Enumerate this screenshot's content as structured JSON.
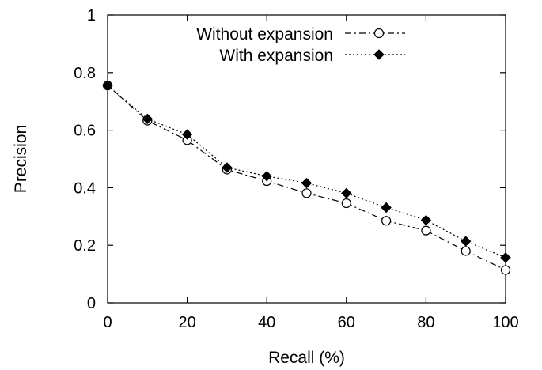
{
  "chart_data": {
    "type": "line",
    "title": "",
    "xlabel": "Recall (%)",
    "ylabel": "Precision",
    "xlim": [
      0,
      100
    ],
    "ylim": [
      0,
      1
    ],
    "x_ticks": [
      0,
      20,
      40,
      60,
      80,
      100
    ],
    "y_ticks": [
      0,
      0.2,
      0.4,
      0.6,
      0.8,
      1
    ],
    "x_tick_labels": [
      "0",
      "20",
      "40",
      "60",
      "80",
      "100"
    ],
    "y_tick_labels": [
      "0",
      "0.2",
      "0.4",
      "0.6",
      "0.8",
      "1"
    ],
    "grid": false,
    "legend_position": "top-right",
    "x": [
      0,
      10,
      20,
      30,
      40,
      50,
      60,
      70,
      80,
      90,
      100
    ],
    "series": [
      {
        "name": "Without expansion",
        "values": [
          0.755,
          0.633,
          0.565,
          0.463,
          0.423,
          0.381,
          0.346,
          0.285,
          0.251,
          0.18,
          0.114
        ],
        "marker": "open-circle",
        "line_style": "dash-dot",
        "color": "#000000"
      },
      {
        "name": "With expansion",
        "values": [
          0.755,
          0.639,
          0.585,
          0.47,
          0.44,
          0.416,
          0.381,
          0.331,
          0.287,
          0.214,
          0.157
        ],
        "marker": "filled-diamond",
        "line_style": "dotted",
        "color": "#000000"
      }
    ]
  }
}
